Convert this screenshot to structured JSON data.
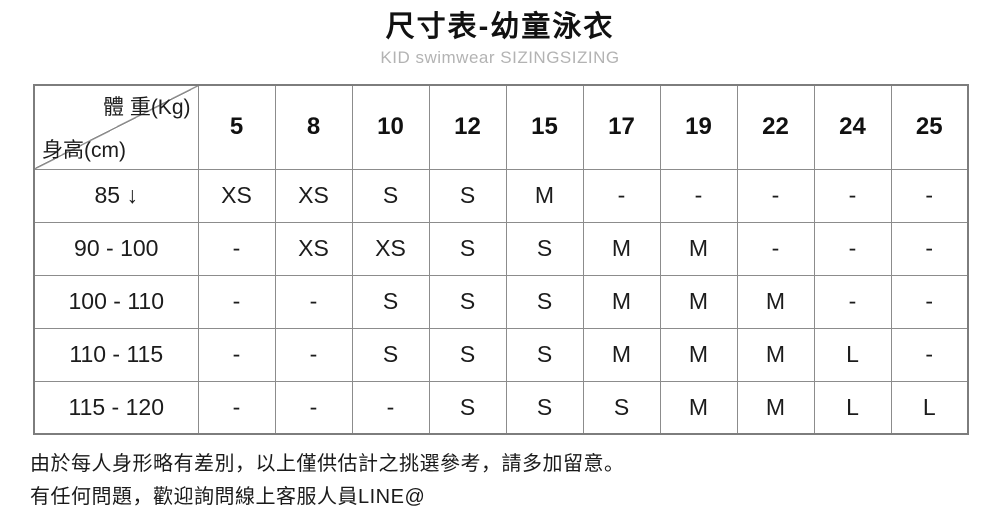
{
  "page": {
    "title": "尺寸表-幼童泳衣",
    "subtitle": "KID swimwear SIZINGSIZING"
  },
  "table": {
    "corner": {
      "weight_label": "體 重(Kg)",
      "height_label": "身高(cm)"
    },
    "weights": [
      "5",
      "8",
      "10",
      "12",
      "15",
      "17",
      "19",
      "22",
      "24",
      "25"
    ],
    "rows": [
      {
        "height": "85 ↓",
        "sizes": [
          "XS",
          "XS",
          "S",
          "S",
          "M",
          "-",
          "-",
          "-",
          "-",
          "-"
        ]
      },
      {
        "height": "90 - 100",
        "sizes": [
          "-",
          "XS",
          "XS",
          "S",
          "S",
          "M",
          "M",
          "-",
          "-",
          "-"
        ]
      },
      {
        "height": "100 - 110",
        "sizes": [
          "-",
          "-",
          "S",
          "S",
          "S",
          "M",
          "M",
          "M",
          "-",
          "-"
        ]
      },
      {
        "height": "110 - 115",
        "sizes": [
          "-",
          "-",
          "S",
          "S",
          "S",
          "M",
          "M",
          "M",
          "L",
          "-"
        ]
      },
      {
        "height": "115 - 120",
        "sizes": [
          "-",
          "-",
          "-",
          "S",
          "S",
          "S",
          "M",
          "M",
          "L",
          "L"
        ]
      }
    ]
  },
  "notes": {
    "line1": "由於每人身形略有差別，以上僅供估計之挑選參考，請多加留意。",
    "line2": "有任何問題，歡迎詢問線上客服人員LINE@"
  },
  "colors": {
    "title_text": "#111111",
    "subtitle_text": "#b3b3b3",
    "body_text": "#1c1c1c",
    "table_border": "#8c8c8c",
    "table_outer_border": "#7d7d7d",
    "background": "#ffffff"
  }
}
